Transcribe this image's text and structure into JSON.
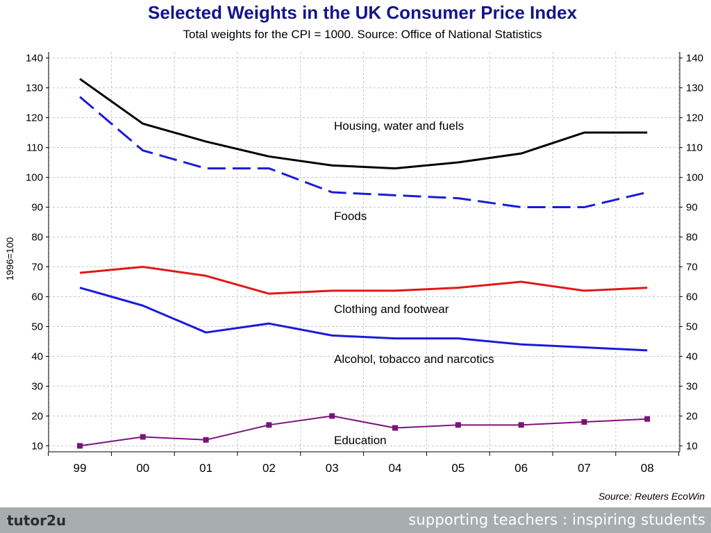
{
  "chart_data": {
    "type": "line",
    "title": "Selected Weights in the UK Consumer Price Index",
    "subtitle": "Total weights for the CPI = 1000. Source: Office of National Statistics",
    "ylabel": "1996=100",
    "xlabel": "",
    "categories": [
      "99",
      "00",
      "01",
      "02",
      "03",
      "04",
      "05",
      "06",
      "07",
      "08"
    ],
    "ylim": [
      8,
      142
    ],
    "yticks": [
      10,
      20,
      30,
      40,
      50,
      60,
      70,
      80,
      90,
      100,
      110,
      120,
      130,
      140
    ],
    "grid": true,
    "series": [
      {
        "name": "Housing, water and fuels",
        "values": [
          133,
          118,
          112,
          107,
          104,
          103,
          105,
          108,
          115,
          115
        ],
        "color": "#000000",
        "style": "solid"
      },
      {
        "name": "Foods",
        "values": [
          127,
          109,
          103,
          103,
          95,
          94,
          93,
          90,
          90,
          95
        ],
        "color": "#1a1adc",
        "style": "dashed"
      },
      {
        "name": "Clothing and footwear",
        "values": [
          68,
          70,
          67,
          61,
          62,
          62,
          63,
          65,
          62,
          63
        ],
        "color": "#e01818",
        "style": "solid"
      },
      {
        "name": "Alcohol, tobacco and narcotics",
        "values": [
          63,
          57,
          48,
          51,
          47,
          46,
          46,
          44,
          43,
          42
        ],
        "color": "#1a1adc",
        "style": "solid"
      },
      {
        "name": "Education",
        "values": [
          10,
          13,
          12,
          17,
          20,
          16,
          17,
          17,
          18,
          19
        ],
        "color": "#7a1478",
        "style": "solid-markers"
      }
    ],
    "annotations": [
      {
        "text": "Housing, water and fuels",
        "series": 0
      },
      {
        "text": "Foods",
        "series": 1
      },
      {
        "text": "Clothing and footwear",
        "series": 2
      },
      {
        "text": "Alcohol, tobacco and narcotics",
        "series": 3
      },
      {
        "text": "Education",
        "series": 4
      }
    ]
  },
  "source_note": "Source: Reuters EcoWin",
  "footer": {
    "brand": "tutor2u",
    "tagline": "supporting teachers : inspiring students"
  }
}
